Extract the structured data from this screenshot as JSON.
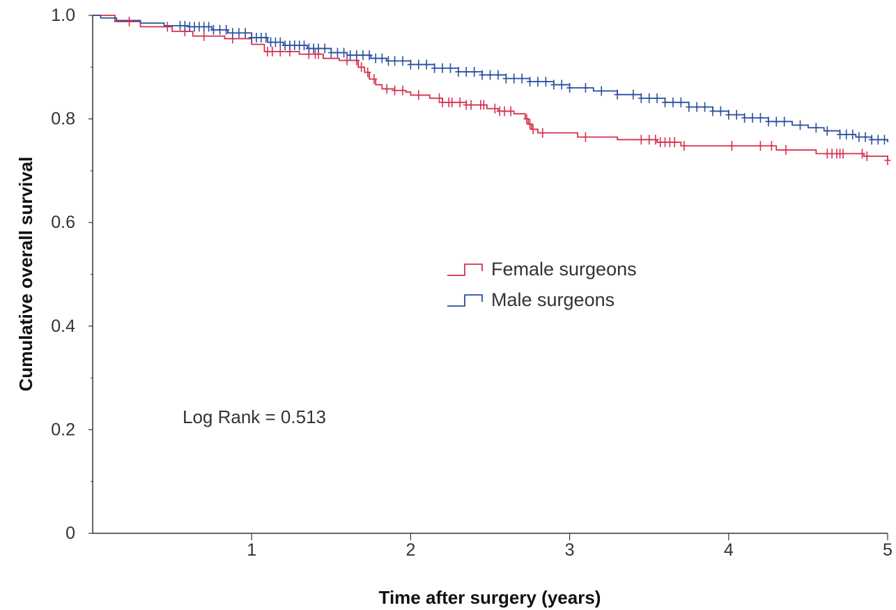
{
  "chart_data": {
    "type": "line",
    "subtype": "kaplan-meier",
    "title": "",
    "xlabel": "Time after surgery (years)",
    "ylabel": "Cumulative overall survival",
    "xlim": [
      0,
      5
    ],
    "ylim": [
      0,
      1.0
    ],
    "x_ticks": [
      1,
      2,
      3,
      4,
      5
    ],
    "y_ticks": [
      0,
      0.2,
      0.4,
      0.6,
      0.8,
      1.0
    ],
    "x_tick_labels": [
      "1",
      "2",
      "3",
      "4",
      "5"
    ],
    "y_tick_labels": [
      "0",
      "0.2",
      "0.4",
      "0.6",
      "0.8",
      "1.0"
    ],
    "grid": false,
    "legend_position": "center-right",
    "annotation": "Log Rank = 0.513",
    "series": [
      {
        "name": "Female surgeons",
        "color": "#d6304f",
        "steps": [
          [
            0.0,
            1.0
          ],
          [
            0.14,
            0.988
          ],
          [
            0.3,
            0.978
          ],
          [
            0.5,
            0.969
          ],
          [
            0.63,
            0.96
          ],
          [
            0.83,
            0.955
          ],
          [
            1.0,
            0.944
          ],
          [
            1.08,
            0.93
          ],
          [
            1.3,
            0.925
          ],
          [
            1.45,
            0.917
          ],
          [
            1.55,
            0.913
          ],
          [
            1.67,
            0.9
          ],
          [
            1.71,
            0.89
          ],
          [
            1.74,
            0.877
          ],
          [
            1.78,
            0.866
          ],
          [
            1.82,
            0.858
          ],
          [
            1.9,
            0.855
          ],
          [
            1.97,
            0.852
          ],
          [
            2.0,
            0.846
          ],
          [
            2.12,
            0.84
          ],
          [
            2.2,
            0.832
          ],
          [
            2.35,
            0.827
          ],
          [
            2.48,
            0.82
          ],
          [
            2.55,
            0.815
          ],
          [
            2.65,
            0.81
          ],
          [
            2.72,
            0.8
          ],
          [
            2.74,
            0.79
          ],
          [
            2.76,
            0.78
          ],
          [
            2.8,
            0.773
          ],
          [
            3.05,
            0.765
          ],
          [
            3.3,
            0.76
          ],
          [
            3.55,
            0.755
          ],
          [
            3.7,
            0.748
          ],
          [
            4.3,
            0.74
          ],
          [
            4.55,
            0.733
          ],
          [
            4.85,
            0.728
          ],
          [
            5.0,
            0.72
          ]
        ],
        "censor_times": [
          0.23,
          0.47,
          0.58,
          0.7,
          0.88,
          1.1,
          1.13,
          1.18,
          1.24,
          1.36,
          1.4,
          1.42,
          1.6,
          1.66,
          1.69,
          1.73,
          1.77,
          1.85,
          1.9,
          1.95,
          2.05,
          2.18,
          2.2,
          2.24,
          2.26,
          2.31,
          2.35,
          2.38,
          2.44,
          2.46,
          2.53,
          2.56,
          2.59,
          2.63,
          2.73,
          2.75,
          2.77,
          2.83,
          3.1,
          3.45,
          3.5,
          3.54,
          3.57,
          3.6,
          3.63,
          3.66,
          3.72,
          4.02,
          4.2,
          4.27,
          4.36,
          4.62,
          4.65,
          4.68,
          4.7,
          4.72,
          4.84,
          4.87,
          5.0
        ]
      },
      {
        "name": "Male surgeons",
        "color": "#2a4f9e",
        "steps": [
          [
            0.0,
            1.0
          ],
          [
            0.05,
            0.995
          ],
          [
            0.15,
            0.99
          ],
          [
            0.3,
            0.985
          ],
          [
            0.45,
            0.98
          ],
          [
            0.6,
            0.978
          ],
          [
            0.75,
            0.972
          ],
          [
            0.85,
            0.966
          ],
          [
            1.0,
            0.957
          ],
          [
            1.1,
            0.948
          ],
          [
            1.2,
            0.942
          ],
          [
            1.35,
            0.936
          ],
          [
            1.5,
            0.928
          ],
          [
            1.6,
            0.923
          ],
          [
            1.75,
            0.917
          ],
          [
            1.85,
            0.912
          ],
          [
            2.0,
            0.905
          ],
          [
            2.15,
            0.898
          ],
          [
            2.3,
            0.891
          ],
          [
            2.45,
            0.885
          ],
          [
            2.6,
            0.878
          ],
          [
            2.75,
            0.872
          ],
          [
            2.9,
            0.866
          ],
          [
            3.0,
            0.86
          ],
          [
            3.15,
            0.854
          ],
          [
            3.3,
            0.847
          ],
          [
            3.45,
            0.84
          ],
          [
            3.6,
            0.832
          ],
          [
            3.75,
            0.823
          ],
          [
            3.9,
            0.815
          ],
          [
            4.0,
            0.808
          ],
          [
            4.1,
            0.802
          ],
          [
            4.25,
            0.795
          ],
          [
            4.4,
            0.788
          ],
          [
            4.5,
            0.783
          ],
          [
            4.6,
            0.777
          ],
          [
            4.7,
            0.77
          ],
          [
            4.8,
            0.765
          ],
          [
            4.9,
            0.76
          ],
          [
            5.0,
            0.755
          ]
        ],
        "censor_times": [
          0.55,
          0.58,
          0.61,
          0.64,
          0.67,
          0.7,
          0.73,
          0.76,
          0.8,
          0.84,
          0.88,
          0.92,
          0.96,
          1.0,
          1.03,
          1.06,
          1.09,
          1.12,
          1.15,
          1.18,
          1.21,
          1.24,
          1.27,
          1.3,
          1.33,
          1.36,
          1.39,
          1.42,
          1.46,
          1.5,
          1.54,
          1.58,
          1.62,
          1.66,
          1.7,
          1.74,
          1.78,
          1.82,
          1.86,
          1.9,
          1.95,
          2.0,
          2.05,
          2.1,
          2.15,
          2.2,
          2.25,
          2.3,
          2.35,
          2.4,
          2.45,
          2.5,
          2.55,
          2.6,
          2.65,
          2.7,
          2.75,
          2.8,
          2.85,
          2.9,
          2.95,
          3.0,
          3.1,
          3.2,
          3.3,
          3.4,
          3.45,
          3.5,
          3.55,
          3.6,
          3.65,
          3.7,
          3.75,
          3.8,
          3.85,
          3.9,
          3.95,
          4.0,
          4.05,
          4.1,
          4.15,
          4.2,
          4.25,
          4.3,
          4.35,
          4.45,
          4.55,
          4.62,
          4.7,
          4.74,
          4.78,
          4.82,
          4.86,
          4.9,
          4.94,
          4.98
        ]
      }
    ]
  }
}
